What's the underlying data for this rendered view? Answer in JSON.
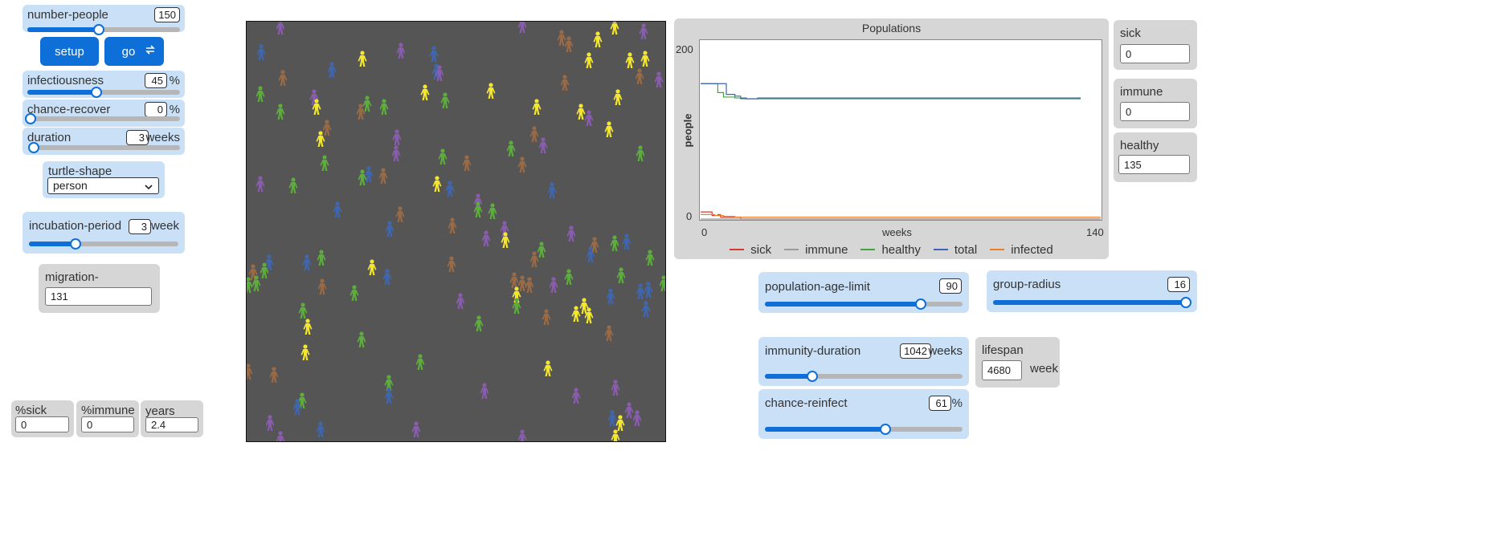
{
  "sliders": {
    "number_people": {
      "label": "number-people",
      "value": "150",
      "level": 0.47
    },
    "infectiousness": {
      "label": "infectiousness",
      "value": "45",
      "unit": "%",
      "level": 0.45
    },
    "chance_recover": {
      "label": "chance-recover",
      "value": "0",
      "unit": "%",
      "level": 0.0
    },
    "duration": {
      "label": "duration",
      "value": "3",
      "unit": "weeks",
      "level": 0.02
    },
    "incubation_period": {
      "label": "incubation-period",
      "value": "3",
      "unit": "week",
      "level": 0.31
    },
    "population_age_limit": {
      "label": "population-age-limit",
      "value": "90",
      "level": 0.79
    },
    "group_radius": {
      "label": "group-radius",
      "value": "16",
      "level": 1.0
    },
    "immunity_duration": {
      "label": "immunity-duration",
      "value": "1042",
      "unit": "weeks",
      "level": 0.24
    },
    "chance_reinfect": {
      "label": "chance-reinfect",
      "value": "61",
      "unit": "%",
      "level": 0.61
    }
  },
  "buttons": {
    "setup": "setup",
    "go": "go"
  },
  "chooser": {
    "label": "turtle-shape",
    "value": "person"
  },
  "monitors": {
    "migration": {
      "label": "migration-occurences",
      "value": "131"
    },
    "pct_sick": {
      "label": "%sick",
      "value": "0"
    },
    "pct_immune": {
      "label": "%immune",
      "value": "0"
    },
    "years": {
      "label": "years",
      "value": "2.4"
    },
    "sick": {
      "label": "sick",
      "value": "0"
    },
    "immune": {
      "label": "immune",
      "value": "0"
    },
    "healthy": {
      "label": "healthy",
      "value": "135"
    }
  },
  "input": {
    "lifespan": {
      "label": "lifespan",
      "value": "4680",
      "unit": "week"
    }
  },
  "world": {
    "background": "#555555",
    "agent_colors": {
      "yellow": "#f2e62e",
      "green": "#5cad3c",
      "brown": "#9a6a45",
      "purple": "#8a5cb0",
      "blue": "#3f67b1"
    }
  },
  "chart_data": {
    "type": "line",
    "title": "Populations",
    "xlabel": "weeks",
    "ylabel": "people",
    "xlim": [
      0,
      140
    ],
    "ylim": [
      0,
      200
    ],
    "x_ticks": [
      "0",
      "140"
    ],
    "y_ticks": [
      "0",
      "200"
    ],
    "legend_position": "bottom",
    "series": [
      {
        "name": "sick",
        "color": "#d73a2a",
        "x": [
          0,
          3,
          4,
          6,
          7,
          9,
          14,
          140
        ],
        "y": [
          8,
          8,
          4,
          5,
          2,
          2,
          0,
          0
        ]
      },
      {
        "name": "immune",
        "color": "#9a9a9a",
        "x": [
          0,
          140
        ],
        "y": [
          0,
          0
        ]
      },
      {
        "name": "healthy",
        "color": "#44a53a",
        "x": [
          0,
          5,
          6,
          8,
          12,
          14,
          16,
          20,
          40,
          60,
          80,
          100,
          120,
          133
        ],
        "y": [
          152,
          152,
          142,
          137,
          136,
          135,
          135,
          135,
          135,
          135,
          135,
          135,
          135,
          135
        ]
      },
      {
        "name": "total",
        "color": "#3b64b8",
        "x": [
          0,
          8,
          9,
          12,
          14,
          16,
          18,
          20,
          40,
          60,
          80,
          100,
          120,
          133
        ],
        "y": [
          152,
          152,
          140,
          138,
          136,
          135,
          135,
          136,
          136,
          136,
          136,
          136,
          136,
          136
        ]
      },
      {
        "name": "infected",
        "color": "#ef7d22",
        "x": [
          0,
          3,
          5,
          8,
          12,
          16,
          140
        ],
        "y": [
          5,
          5,
          4,
          3,
          2,
          2,
          2
        ]
      }
    ]
  }
}
